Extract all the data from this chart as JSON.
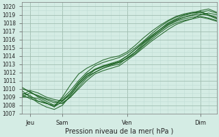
{
  "title": "",
  "xlabel": "Pression niveau de la mer( hPa )",
  "ylabel": "",
  "bg_color": "#d4ece4",
  "grid_major_color": "#a0bdb0",
  "grid_minor_color": "#c0ddd5",
  "line_color": "#1a6020",
  "ylim": [
    1007,
    1020.5
  ],
  "xlim": [
    0,
    96
  ],
  "yticks": [
    1007,
    1008,
    1009,
    1010,
    1011,
    1012,
    1013,
    1014,
    1015,
    1016,
    1017,
    1018,
    1019,
    1020
  ],
  "xtick_positions": [
    4,
    20,
    52,
    88
  ],
  "xtick_labels": [
    "Jeu",
    "Sam",
    "Ven",
    "Dim"
  ],
  "lines": [
    {
      "x": [
        0,
        4,
        8,
        12,
        16,
        20,
        24,
        28,
        32,
        36,
        40,
        44,
        48,
        52,
        56,
        60,
        64,
        68,
        72,
        76,
        80,
        84,
        88,
        92,
        96
      ],
      "y": [
        1009.5,
        1009.2,
        1008.5,
        1008.2,
        1008.0,
        1008.3,
        1009.0,
        1010.0,
        1011.0,
        1011.8,
        1012.2,
        1012.5,
        1012.8,
        1013.5,
        1014.2,
        1015.0,
        1015.8,
        1016.5,
        1017.2,
        1017.8,
        1018.2,
        1018.5,
        1019.0,
        1019.2,
        1019.0
      ]
    },
    {
      "x": [
        0,
        4,
        8,
        12,
        16,
        20,
        24,
        28,
        32,
        36,
        40,
        44,
        48,
        52,
        56,
        60,
        64,
        68,
        72,
        76,
        80,
        84,
        88,
        92,
        96
      ],
      "y": [
        1009.8,
        1009.0,
        1008.3,
        1007.8,
        1007.5,
        1008.0,
        1009.2,
        1010.5,
        1011.5,
        1012.0,
        1012.5,
        1012.8,
        1013.0,
        1013.8,
        1014.5,
        1015.5,
        1016.3,
        1017.0,
        1017.8,
        1018.3,
        1018.7,
        1019.0,
        1019.3,
        1019.5,
        1019.2
      ]
    },
    {
      "x": [
        0,
        4,
        8,
        12,
        16,
        20,
        24,
        28,
        32,
        36,
        40,
        44,
        48,
        52,
        56,
        60,
        64,
        68,
        72,
        76,
        80,
        84,
        88,
        92,
        96
      ],
      "y": [
        1009.3,
        1008.8,
        1008.5,
        1008.3,
        1007.8,
        1008.5,
        1009.5,
        1010.8,
        1011.8,
        1012.3,
        1012.7,
        1013.0,
        1013.3,
        1014.0,
        1014.8,
        1015.7,
        1016.5,
        1017.2,
        1018.0,
        1018.5,
        1018.9,
        1019.2,
        1019.5,
        1019.7,
        1019.3
      ]
    },
    {
      "x": [
        0,
        4,
        8,
        12,
        16,
        20,
        24,
        28,
        32,
        36,
        40,
        44,
        48,
        52,
        56,
        60,
        64,
        68,
        72,
        76,
        80,
        84,
        88,
        92,
        96
      ],
      "y": [
        1009.0,
        1009.5,
        1009.2,
        1008.8,
        1008.5,
        1008.2,
        1009.0,
        1010.2,
        1011.3,
        1012.0,
        1012.5,
        1012.9,
        1013.2,
        1013.7,
        1014.5,
        1015.3,
        1016.2,
        1017.0,
        1017.7,
        1018.2,
        1018.5,
        1018.7,
        1018.8,
        1018.6,
        1018.3
      ]
    },
    {
      "x": [
        0,
        4,
        8,
        12,
        16,
        20,
        24,
        28,
        32,
        36,
        40,
        44,
        48,
        52,
        56,
        60,
        64,
        68,
        72,
        76,
        80,
        84,
        88,
        92,
        96
      ],
      "y": [
        1010.0,
        1009.7,
        1009.0,
        1008.5,
        1008.0,
        1008.8,
        1009.8,
        1011.0,
        1012.0,
        1012.8,
        1013.2,
        1013.5,
        1013.8,
        1014.3,
        1015.0,
        1015.8,
        1016.7,
        1017.5,
        1018.2,
        1018.7,
        1019.0,
        1019.2,
        1019.3,
        1019.0,
        1018.7
      ]
    },
    {
      "x": [
        0,
        4,
        8,
        12,
        16,
        20,
        24,
        28,
        32,
        36,
        40,
        44,
        48,
        52,
        56,
        60,
        64,
        68,
        72,
        76,
        80,
        84,
        88,
        92,
        96
      ],
      "y": [
        1009.2,
        1009.8,
        1009.5,
        1009.0,
        1008.7,
        1008.5,
        1009.3,
        1010.5,
        1011.5,
        1012.3,
        1012.7,
        1013.0,
        1013.2,
        1013.7,
        1014.3,
        1015.2,
        1016.0,
        1016.8,
        1017.5,
        1018.0,
        1018.3,
        1018.5,
        1018.7,
        1018.5,
        1018.2
      ]
    },
    {
      "x": [
        0,
        4,
        8,
        12,
        16,
        20,
        24,
        28,
        32,
        36,
        40,
        44,
        48,
        52,
        56,
        60,
        64,
        68,
        72,
        76,
        80,
        84,
        88,
        92,
        96
      ],
      "y": [
        1009.0,
        1009.0,
        1008.8,
        1008.3,
        1007.8,
        1009.0,
        1010.5,
        1011.8,
        1012.5,
        1013.0,
        1013.5,
        1013.8,
        1014.0,
        1014.5,
        1015.3,
        1016.2,
        1017.0,
        1017.7,
        1018.3,
        1018.8,
        1019.1,
        1019.3,
        1019.4,
        1019.0,
        1018.6
      ]
    },
    {
      "x": [
        0,
        4,
        8,
        12,
        16,
        20,
        24,
        28,
        32,
        36,
        40,
        44,
        48,
        52,
        56,
        60,
        64,
        68,
        72,
        76,
        80,
        84,
        88,
        92,
        96
      ],
      "y": [
        1010.2,
        1009.6,
        1009.1,
        1008.7,
        1008.3,
        1008.6,
        1009.5,
        1010.7,
        1011.7,
        1012.4,
        1012.8,
        1013.1,
        1013.4,
        1014.0,
        1014.8,
        1015.6,
        1016.4,
        1017.2,
        1017.9,
        1018.4,
        1018.7,
        1018.9,
        1019.1,
        1018.9,
        1018.5
      ]
    }
  ]
}
